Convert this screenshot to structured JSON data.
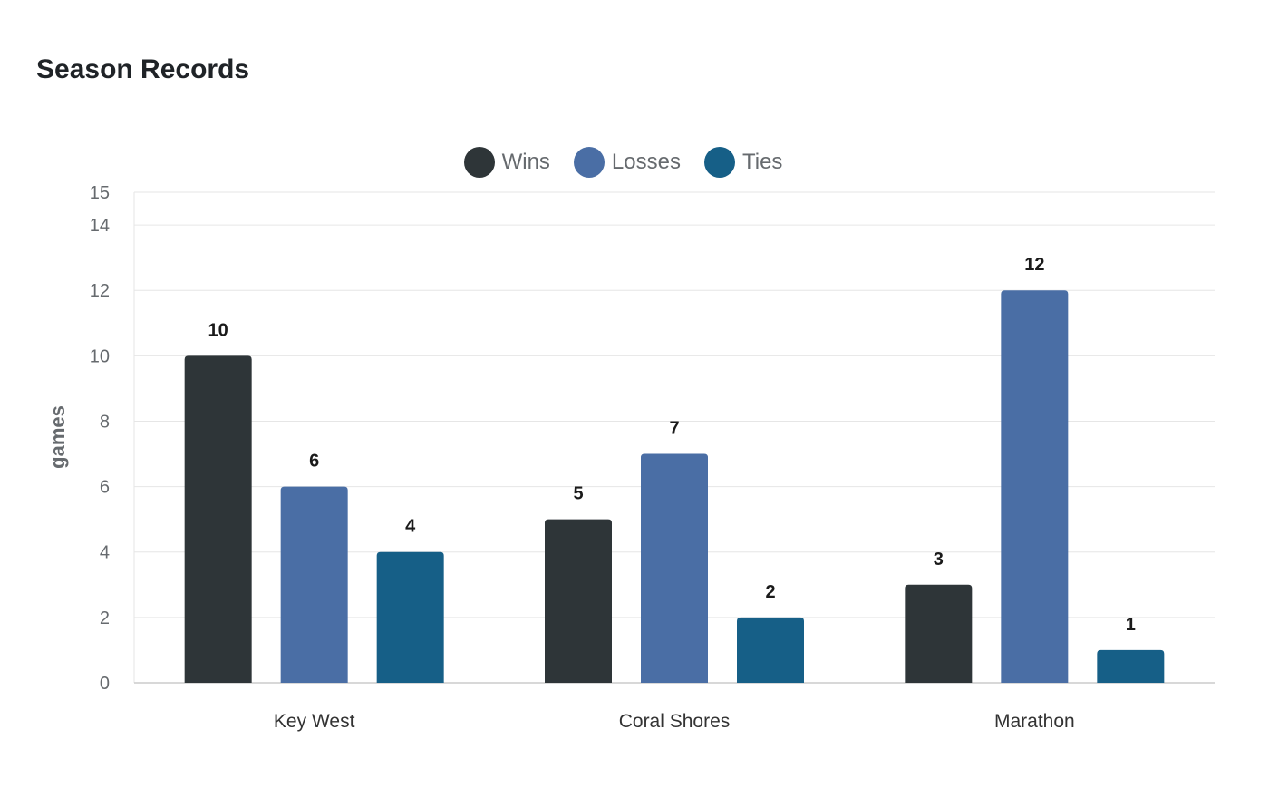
{
  "chart_data": {
    "type": "bar",
    "title": "Season Records",
    "xlabel": "",
    "ylabel": "games",
    "categories": [
      "Key West",
      "Coral Shores",
      "Marathon"
    ],
    "series": [
      {
        "name": "Wins",
        "values": [
          10,
          5,
          3
        ],
        "color": "#2e3538"
      },
      {
        "name": "Losses",
        "values": [
          6,
          7,
          12
        ],
        "color": "#4a6ea5"
      },
      {
        "name": "Ties",
        "values": [
          4,
          2,
          1
        ],
        "color": "#165f87"
      }
    ],
    "ylim": [
      0,
      15
    ],
    "yticks": [
      0,
      2,
      4,
      6,
      8,
      10,
      12,
      14,
      15
    ],
    "grid": true,
    "legend_position": "top-center",
    "data_labels": true
  }
}
